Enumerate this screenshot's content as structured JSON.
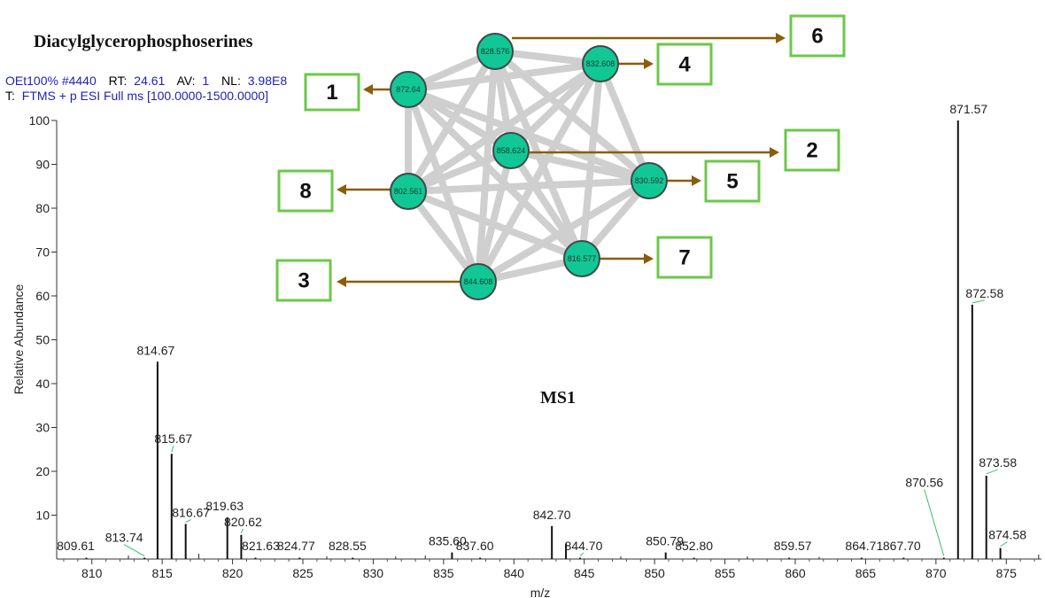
{
  "header": {
    "title": "Diacylglycerophosphoserines",
    "scan_prefix": "OEt100% #4440",
    "rt_label": "RT:",
    "rt_value": "24.61",
    "av_label": "AV:",
    "av_value": "1",
    "nl_label": "NL:",
    "nl_value": "3.98E8",
    "filter_prefix": "T:",
    "filter": "FTMS + p ESI Full ms [100.0000-1500.0000]"
  },
  "annotation": "MS1",
  "chart_data": {
    "type": "bar",
    "xlabel": "m/z",
    "ylabel": "Relative Abundance",
    "xlim": [
      807.5,
      877.5
    ],
    "ylim": [
      0,
      100
    ],
    "xticks": [
      810,
      815,
      820,
      825,
      830,
      835,
      840,
      845,
      850,
      855,
      860,
      865,
      870,
      875
    ],
    "yticks": [
      10,
      20,
      30,
      40,
      50,
      60,
      70,
      80,
      90,
      100
    ],
    "peaks": [
      {
        "mz": 809.61,
        "ab": 0.3,
        "label": "809.61"
      },
      {
        "mz": 813.74,
        "ab": 0.3,
        "label": "813.74"
      },
      {
        "mz": 814.67,
        "ab": 45,
        "label": "814.67"
      },
      {
        "mz": 815.67,
        "ab": 24,
        "label": "815.67"
      },
      {
        "mz": 816.67,
        "ab": 8,
        "label": "816.67"
      },
      {
        "mz": 819.63,
        "ab": 9.5,
        "label": "819.63"
      },
      {
        "mz": 820.62,
        "ab": 5.5,
        "label": "820.62"
      },
      {
        "mz": 821.63,
        "ab": 0.3,
        "label": "821.63"
      },
      {
        "mz": 824.77,
        "ab": 0.3,
        "label": "824.77"
      },
      {
        "mz": 828.55,
        "ab": 0.3,
        "label": "828.55"
      },
      {
        "mz": 835.6,
        "ab": 1.5,
        "label": "835.60"
      },
      {
        "mz": 837.6,
        "ab": 0.3,
        "label": "837.60"
      },
      {
        "mz": 842.7,
        "ab": 7.5,
        "label": "842.70"
      },
      {
        "mz": 843.7,
        "ab": 3.5,
        "label": ""
      },
      {
        "mz": 844.7,
        "ab": 0.3,
        "label": "844.70"
      },
      {
        "mz": 850.79,
        "ab": 1.5,
        "label": "850.79"
      },
      {
        "mz": 852.8,
        "ab": 0.3,
        "label": "852.80"
      },
      {
        "mz": 859.57,
        "ab": 0.3,
        "label": "859.57"
      },
      {
        "mz": 864.71,
        "ab": 0.3,
        "label": "864.71"
      },
      {
        "mz": 867.7,
        "ab": 0.3,
        "label": "867.70"
      },
      {
        "mz": 870.56,
        "ab": 0.3,
        "label": "870.56"
      },
      {
        "mz": 871.57,
        "ab": 100,
        "label": "871.57"
      },
      {
        "mz": 872.58,
        "ab": 58,
        "label": "872.58"
      },
      {
        "mz": 873.58,
        "ab": 19,
        "label": "873.58"
      },
      {
        "mz": 874.58,
        "ab": 2.5,
        "label": "874.58"
      }
    ],
    "minor_peaks": [
      {
        "mz": 812.6,
        "ab": 0.8
      },
      {
        "mz": 817.6,
        "ab": 1.2
      },
      {
        "mz": 826.7,
        "ab": 0.6
      },
      {
        "mz": 831.6,
        "ab": 0.6
      },
      {
        "mz": 833.7,
        "ab": 0.8
      },
      {
        "mz": 847.6,
        "ab": 0.6
      },
      {
        "mz": 856.6,
        "ab": 0.6
      },
      {
        "mz": 861.7,
        "ab": 0.5
      },
      {
        "mz": 877.3,
        "ab": 1.0
      }
    ]
  },
  "network": {
    "nodes": [
      {
        "id": "n872",
        "label": "872.64",
        "box": "1"
      },
      {
        "id": "n858",
        "label": "858.624",
        "box": "2"
      },
      {
        "id": "n844",
        "label": "844.608",
        "box": "3"
      },
      {
        "id": "n832",
        "label": "832.608",
        "box": "4"
      },
      {
        "id": "n830",
        "label": "830.592",
        "box": "5"
      },
      {
        "id": "n828",
        "label": "828.576",
        "box": "6"
      },
      {
        "id": "n816",
        "label": "816.577",
        "box": "7"
      },
      {
        "id": "n802",
        "label": "802.561",
        "box": "8"
      }
    ],
    "colors": {
      "node": "#12c796",
      "node_stroke": "#3d4a46",
      "edge": "#cfcfcf",
      "arrow": "#8a5d0a",
      "box": "#6cc84a"
    }
  }
}
